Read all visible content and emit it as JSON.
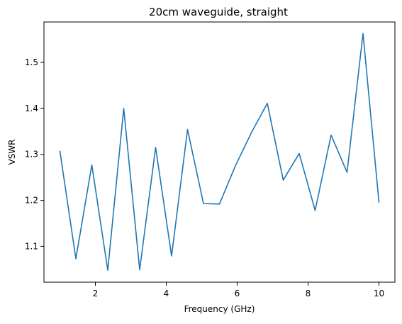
{
  "chart_data": {
    "type": "line",
    "title": "20cm waveguide, straight",
    "xlabel": "Frequency (GHz)",
    "ylabel": "VSWR",
    "xlim": [
      0.55,
      10.45
    ],
    "ylim": [
      1.022,
      1.588
    ],
    "xticks": [
      2,
      4,
      6,
      8,
      10
    ],
    "yticks": [
      1.1,
      1.2,
      1.3,
      1.4,
      1.5
    ],
    "xtick_labels": [
      "2",
      "4",
      "6",
      "8",
      "10"
    ],
    "ytick_labels": [
      "1.1",
      "1.2",
      "1.3",
      "1.4",
      "1.5"
    ],
    "grid": false,
    "legend": "none",
    "series": [
      {
        "color": "#1f77b4",
        "x": [
          1.0,
          1.45,
          1.9,
          2.35,
          2.8,
          3.25,
          3.7,
          4.15,
          4.6,
          5.05,
          5.5,
          5.95,
          6.4,
          6.85,
          7.3,
          7.75,
          8.2,
          8.65,
          9.1,
          9.55,
          10.0
        ],
        "y": [
          1.307,
          1.073,
          1.277,
          1.048,
          1.4,
          1.049,
          1.315,
          1.079,
          1.354,
          1.193,
          1.192,
          1.275,
          1.347,
          1.411,
          1.244,
          1.302,
          1.178,
          1.342,
          1.261,
          1.563,
          1.196
        ]
      }
    ]
  }
}
